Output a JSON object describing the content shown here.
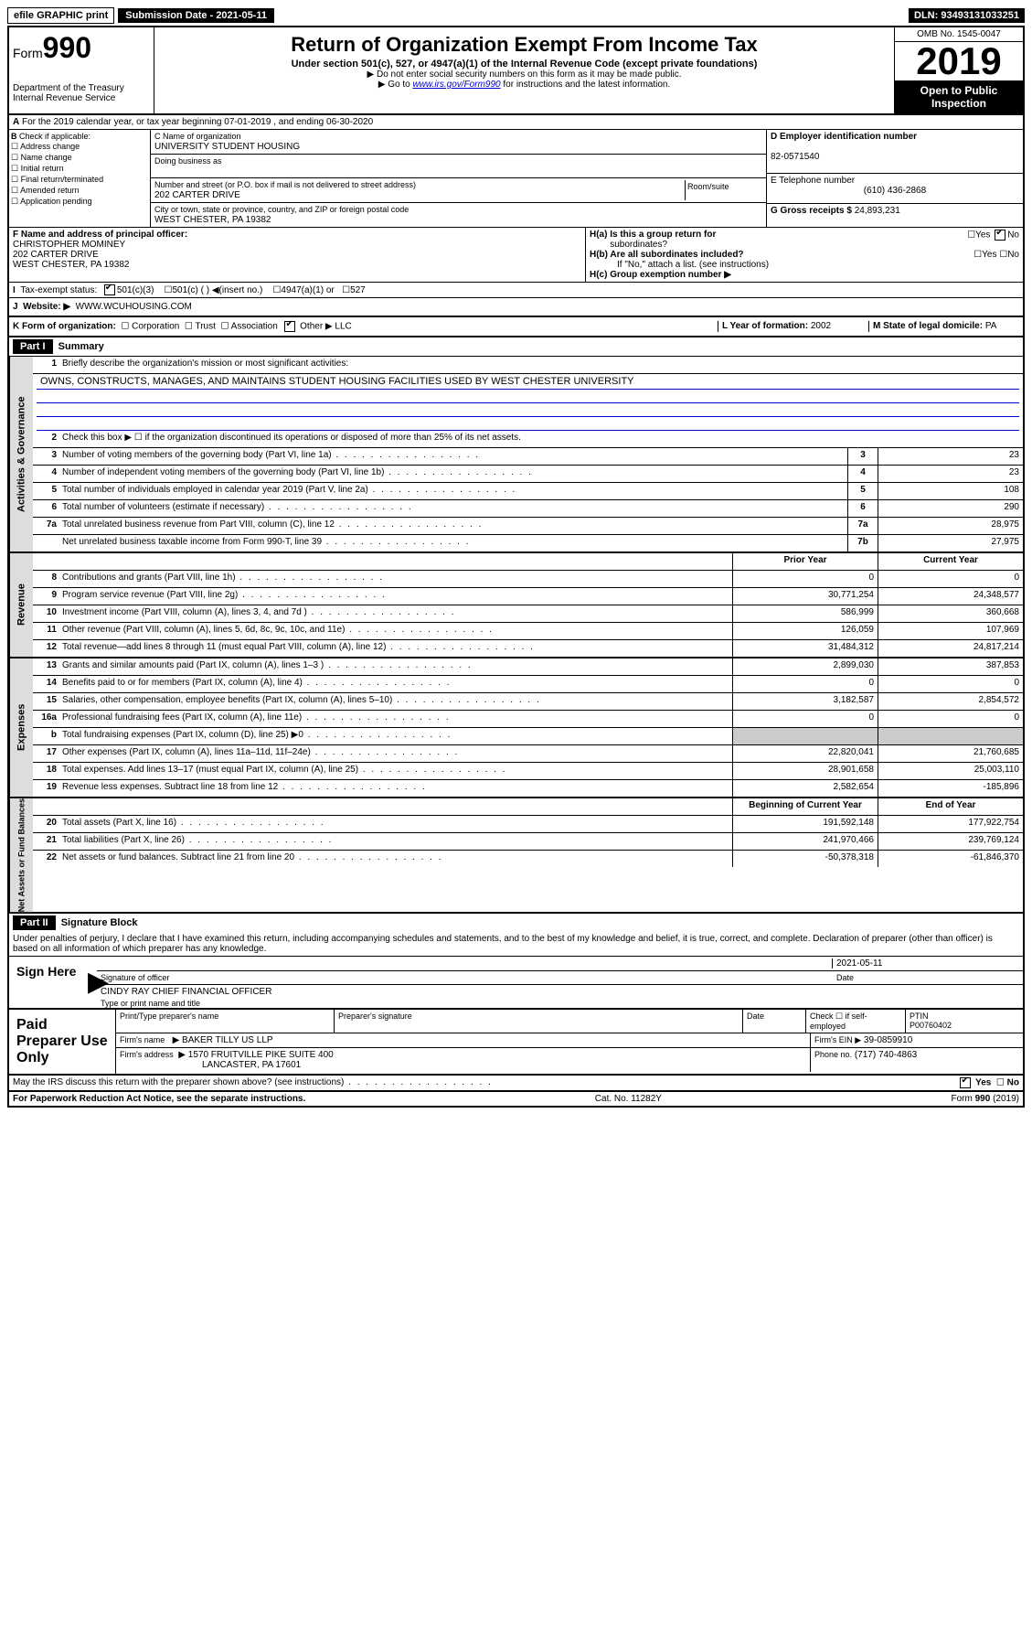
{
  "topbar": {
    "efile": "efile GRAPHIC print",
    "subDate": "Submission Date - 2021-05-11",
    "dln": "DLN: 93493131033251"
  },
  "header": {
    "formWord": "Form",
    "formNum": "990",
    "dept": "Department of the Treasury",
    "irs": "Internal Revenue Service",
    "title": "Return of Organization Exempt From Income Tax",
    "sub": "Under section 501(c), 527, or 4947(a)(1) of the Internal Revenue Code (except private foundations)",
    "note1": "▶ Do not enter social security numbers on this form as it may be made public.",
    "note2": "▶ Go to www.irs.gov/Form990 for instructions and the latest information.",
    "omb": "OMB No. 1545-0047",
    "year": "2019",
    "open1": "Open to Public",
    "open2": "Inspection"
  },
  "A": {
    "text": "For the 2019 calendar year, or tax year beginning 07-01-2019    , and ending 06-30-2020"
  },
  "B": {
    "label": "Check if applicable:",
    "items": [
      "Address change",
      "Name change",
      "Initial return",
      "Final return/terminated",
      "Amended return",
      "Application pending"
    ]
  },
  "C": {
    "nameLbl": "C Name of organization",
    "name": "UNIVERSITY STUDENT HOUSING",
    "dbaLbl": "Doing business as",
    "addrLbl": "Number and street (or P.O. box if mail is not delivered to street address)",
    "addr": "202 CARTER DRIVE",
    "room": "Room/suite",
    "cityLbl": "City or town, state or province, country, and ZIP or foreign postal code",
    "city": "WEST CHESTER, PA  19382"
  },
  "D": {
    "lbl": "D Employer identification number",
    "val": "82-0571540"
  },
  "E": {
    "lbl": "E Telephone number",
    "val": "(610) 436-2868"
  },
  "G": {
    "lbl": "G Gross receipts $",
    "val": "24,893,231"
  },
  "F": {
    "lbl": "F  Name and address of principal officer:",
    "name": "CHRISTOPHER MOMINEY",
    "addr": "202 CARTER DRIVE",
    "city": "WEST CHESTER, PA  19382"
  },
  "H": {
    "a": "H(a)  Is this a group return for",
    "a2": "subordinates?",
    "b": "H(b)  Are all subordinates included?",
    "bnote": "If \"No,\" attach a list. (see instructions)",
    "c": "H(c)  Group exemption number ▶",
    "yes": "Yes",
    "no": "No"
  },
  "I": {
    "lbl": "Tax-exempt status:",
    "opts": [
      "501(c)(3)",
      "501(c) (  ) ◀(insert no.)",
      "4947(a)(1) or",
      "527"
    ]
  },
  "J": {
    "lbl": "Website: ▶",
    "val": "WWW.WCUHOUSING.COM"
  },
  "K": {
    "lbl": "K Form of organization:",
    "opts": [
      "Corporation",
      "Trust",
      "Association",
      "Other ▶"
    ],
    "other": "LLC"
  },
  "L": {
    "lbl": "L Year of formation:",
    "val": "2002"
  },
  "M": {
    "lbl": "M State of legal domicile:",
    "val": "PA"
  },
  "part1": {
    "hdr": "Part I",
    "title": "Summary"
  },
  "gov": {
    "tab": "Activities & Governance",
    "l1": "Briefly describe the organization's mission or most significant activities:",
    "mission": "OWNS, CONSTRUCTS, MANAGES, AND MAINTAINS STUDENT HOUSING FACILITIES USED BY WEST CHESTER UNIVERSITY",
    "l2": "Check this box ▶ ☐  if the organization discontinued its operations or disposed of more than 25% of its net assets.",
    "rows": [
      {
        "n": "3",
        "t": "Number of voting members of the governing body (Part VI, line 1a)",
        "b": "3",
        "v": "23"
      },
      {
        "n": "4",
        "t": "Number of independent voting members of the governing body (Part VI, line 1b)",
        "b": "4",
        "v": "23"
      },
      {
        "n": "5",
        "t": "Total number of individuals employed in calendar year 2019 (Part V, line 2a)",
        "b": "5",
        "v": "108"
      },
      {
        "n": "6",
        "t": "Total number of volunteers (estimate if necessary)",
        "b": "6",
        "v": "290"
      },
      {
        "n": "7a",
        "t": "Total unrelated business revenue from Part VIII, column (C), line 12",
        "b": "7a",
        "v": "28,975"
      },
      {
        "n": "",
        "t": "Net unrelated business taxable income from Form 990-T, line 39",
        "b": "7b",
        "v": "27,975"
      }
    ]
  },
  "rev": {
    "tab": "Revenue",
    "h1": "Prior Year",
    "h2": "Current Year",
    "rows": [
      {
        "n": "8",
        "t": "Contributions and grants (Part VIII, line 1h)",
        "p": "0",
        "c": "0"
      },
      {
        "n": "9",
        "t": "Program service revenue (Part VIII, line 2g)",
        "p": "30,771,254",
        "c": "24,348,577"
      },
      {
        "n": "10",
        "t": "Investment income (Part VIII, column (A), lines 3, 4, and 7d )",
        "p": "586,999",
        "c": "360,668"
      },
      {
        "n": "11",
        "t": "Other revenue (Part VIII, column (A), lines 5, 6d, 8c, 9c, 10c, and 11e)",
        "p": "126,059",
        "c": "107,969"
      },
      {
        "n": "12",
        "t": "Total revenue—add lines 8 through 11 (must equal Part VIII, column (A), line 12)",
        "p": "31,484,312",
        "c": "24,817,214"
      }
    ]
  },
  "exp": {
    "tab": "Expenses",
    "rows": [
      {
        "n": "13",
        "t": "Grants and similar amounts paid (Part IX, column (A), lines 1–3 )",
        "p": "2,899,030",
        "c": "387,853"
      },
      {
        "n": "14",
        "t": "Benefits paid to or for members (Part IX, column (A), line 4)",
        "p": "0",
        "c": "0"
      },
      {
        "n": "15",
        "t": "Salaries, other compensation, employee benefits (Part IX, column (A), lines 5–10)",
        "p": "3,182,587",
        "c": "2,854,572"
      },
      {
        "n": "16a",
        "t": "Professional fundraising fees (Part IX, column (A), line 11e)",
        "p": "0",
        "c": "0"
      },
      {
        "n": "b",
        "t": "Total fundraising expenses (Part IX, column (D), line 25) ▶0",
        "p": "",
        "c": ""
      },
      {
        "n": "17",
        "t": "Other expenses (Part IX, column (A), lines 11a–11d, 11f–24e)",
        "p": "22,820,041",
        "c": "21,760,685"
      },
      {
        "n": "18",
        "t": "Total expenses. Add lines 13–17 (must equal Part IX, column (A), line 25)",
        "p": "28,901,658",
        "c": "25,003,110"
      },
      {
        "n": "19",
        "t": "Revenue less expenses. Subtract line 18 from line 12",
        "p": "2,582,654",
        "c": "-185,896"
      }
    ]
  },
  "net": {
    "tab": "Net Assets or Fund Balances",
    "h1": "Beginning of Current Year",
    "h2": "End of Year",
    "rows": [
      {
        "n": "20",
        "t": "Total assets (Part X, line 16)",
        "p": "191,592,148",
        "c": "177,922,754"
      },
      {
        "n": "21",
        "t": "Total liabilities (Part X, line 26)",
        "p": "241,970,466",
        "c": "239,769,124"
      },
      {
        "n": "22",
        "t": "Net assets or fund balances. Subtract line 21 from line 20",
        "p": "-50,378,318",
        "c": "-61,846,370"
      }
    ]
  },
  "part2": {
    "hdr": "Part II",
    "title": "Signature Block",
    "decl": "Under penalties of perjury, I declare that I have examined this return, including accompanying schedules and statements, and to the best of my knowledge and belief, it is true, correct, and complete. Declaration of preparer (other than officer) is based on all information of which preparer has any knowledge."
  },
  "sign": {
    "lbl": "Sign Here",
    "sigOff": "Signature of officer",
    "date": "2021-05-11",
    "dateLbl": "Date",
    "name": "CINDY RAY  CHIEF FINANCIAL OFFICER",
    "nameLbl": "Type or print name and title"
  },
  "paid": {
    "lbl": "Paid Preparer Use Only",
    "h": [
      "Print/Type preparer's name",
      "Preparer's signature",
      "Date"
    ],
    "check": "Check ☐ if self-employed",
    "ptin": "PTIN",
    "ptinV": "P00760402",
    "firmLbl": "Firm's name",
    "firm": "▶ BAKER TILLY US LLP",
    "einLbl": "Firm's EIN ▶",
    "ein": "39-0859910",
    "addrLbl": "Firm's address",
    "addr": "▶ 1570 FRUITVILLE PIKE SUITE 400",
    "addr2": "LANCASTER, PA  17601",
    "phLbl": "Phone no.",
    "ph": "(717) 740-4863"
  },
  "discuss": {
    "q": "May the IRS discuss this return with the preparer shown above? (see instructions)",
    "yes": "Yes",
    "no": "No"
  },
  "foot": {
    "l": "For Paperwork Reduction Act Notice, see the separate instructions.",
    "c": "Cat. No. 11282Y",
    "r": "Form 990 (2019)"
  }
}
